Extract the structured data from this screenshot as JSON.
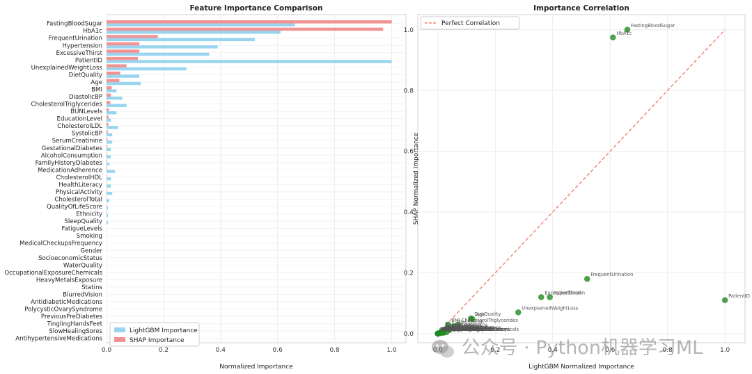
{
  "chart_data": [
    {
      "type": "bar",
      "orientation": "horizontal",
      "title": "Feature Importance Comparison",
      "xlabel": "Normalized Importance",
      "xlim": [
        0,
        1.05
      ],
      "xticks": [
        "0.0",
        "0.2",
        "0.4",
        "0.6",
        "0.8",
        "1.0"
      ],
      "grid": true,
      "legend_position": "lower-left",
      "categories": [
        "FastingBloodSugar",
        "HbA1c",
        "FrequentUrination",
        "Hypertension",
        "ExcessiveThirst",
        "PatientID",
        "UnexplainedWeightLoss",
        "DietQuality",
        "Age",
        "BMI",
        "DiastolicBP",
        "CholesterolTriglycerides",
        "BUNLevels",
        "EducationLevel",
        "CholesterolLDL",
        "SystolicBP",
        "SerumCreatinine",
        "GestationalDiabetes",
        "AlcoholConsumption",
        "FamilyHistoryDiabetes",
        "MedicationAdherence",
        "CholesterolHDL",
        "HealthLiteracy",
        "PhysicalActivity",
        "CholesterolTotal",
        "QualityOfLifeScore",
        "Ethnicity",
        "SleepQuality",
        "FatigueLevels",
        "Smoking",
        "MedicalCheckupsFrequency",
        "Gender",
        "SocioeconomicStatus",
        "WaterQuality",
        "OccupationalExposureChemicals",
        "HeavyMetalsExposure",
        "Statins",
        "BlurredVision",
        "AntidiabeticMedications",
        "PolycysticOvarySyndrome",
        "PreviousPreDiabetes",
        "TinglingHandsFeet",
        "SlowHealingSores",
        "AntihypertensiveMedications"
      ],
      "series": [
        {
          "name": "LightGBM Importance",
          "color": "#87ceeb",
          "values": [
            0.66,
            0.61,
            0.52,
            0.39,
            0.36,
            1.0,
            0.28,
            0.115,
            0.12,
            0.035,
            0.055,
            0.07,
            0.035,
            0.015,
            0.04,
            0.02,
            0.02,
            0.015,
            0.015,
            0.01,
            0.03,
            0.015,
            0.015,
            0.02,
            0.01,
            0.005,
            0.005,
            0.005,
            0.0,
            0.0,
            0.0,
            0.0,
            0.0,
            0.0,
            0.0,
            0.0,
            0.0,
            0.0,
            0.0,
            0.0,
            0.0,
            0.0,
            0.0,
            0.0
          ]
        },
        {
          "name": "SHAP Importance",
          "color": "#f08080",
          "values": [
            1.0,
            0.97,
            0.18,
            0.115,
            0.115,
            0.11,
            0.07,
            0.048,
            0.045,
            0.018,
            0.015,
            0.013,
            0.008,
            0.007,
            0.006,
            0.004,
            0.003,
            0.003,
            0.002,
            0.002,
            0.002,
            0.001,
            0.001,
            0.001,
            0.001,
            0.001,
            0.001,
            0.0,
            0.0,
            0.0,
            0.0,
            0.0,
            0.0,
            0.0,
            0.0,
            0.0,
            0.0,
            0.0,
            0.0,
            0.0,
            0.0,
            0.0,
            0.0,
            0.0
          ]
        }
      ]
    },
    {
      "type": "scatter",
      "title": "Importance Correlation",
      "xlabel": "LightGBM Normalized Importance",
      "ylabel": "SHAP Normalized Importance",
      "xlim": [
        -0.07,
        1.07
      ],
      "ylim": [
        -0.03,
        1.05
      ],
      "xticks": [
        "0.0",
        "0.2",
        "0.4",
        "0.6",
        "0.8",
        "1.0"
      ],
      "yticks": [
        "0.0",
        "0.2",
        "0.4",
        "0.6",
        "0.8",
        "1.0"
      ],
      "grid": true,
      "legend_position": "top-left",
      "point_color": "#228b22",
      "reference_line": {
        "name": "Perfect Correlation",
        "color": "#f08070",
        "from": [
          0,
          0
        ],
        "to": [
          1,
          1
        ]
      },
      "points": [
        {
          "label": "FastingBloodSugar",
          "x": 0.66,
          "y": 1.0
        },
        {
          "label": "HbA1c",
          "x": 0.61,
          "y": 0.975
        },
        {
          "label": "FrequentUrination",
          "x": 0.52,
          "y": 0.18
        },
        {
          "label": "Hypertension",
          "x": 0.39,
          "y": 0.12
        },
        {
          "label": "ExcessiveThirst",
          "x": 0.36,
          "y": 0.12
        },
        {
          "label": "PatientID",
          "x": 1.0,
          "y": 0.11
        },
        {
          "label": "UnexplainedWeightLoss",
          "x": 0.28,
          "y": 0.07
        },
        {
          "label": "DietQuality",
          "x": 0.115,
          "y": 0.05
        },
        {
          "label": "Age",
          "x": 0.12,
          "y": 0.048
        },
        {
          "label": "BMI",
          "x": 0.035,
          "y": 0.03
        },
        {
          "label": "DiastolicBP",
          "x": 0.055,
          "y": 0.024
        },
        {
          "label": "CholesterolTriglycerides",
          "x": 0.07,
          "y": 0.03
        },
        {
          "label": "BUNLevels",
          "x": 0.035,
          "y": 0.015
        },
        {
          "label": "EducationLevel",
          "x": 0.015,
          "y": 0.012
        },
        {
          "label": "CholesterolLDL",
          "x": 0.04,
          "y": 0.012
        },
        {
          "label": "SystolicBP",
          "x": 0.02,
          "y": 0.01
        },
        {
          "label": "SerumCreatinine",
          "x": 0.02,
          "y": 0.008
        },
        {
          "label": "GestationalDiabetes",
          "x": 0.015,
          "y": 0.006
        },
        {
          "label": "AlcoholConsumption",
          "x": 0.015,
          "y": 0.005
        },
        {
          "label": "FamilyHistoryDiabetes",
          "x": 0.01,
          "y": 0.004
        },
        {
          "label": "MedicationAdherence",
          "x": 0.03,
          "y": 0.005
        },
        {
          "label": "CholesterolHDL",
          "x": 0.015,
          "y": 0.004
        },
        {
          "label": "HealthLiteracy",
          "x": 0.015,
          "y": 0.003
        },
        {
          "label": "PhysicalActivity",
          "x": 0.02,
          "y": 0.003
        },
        {
          "label": "CholesterolTotal",
          "x": 0.01,
          "y": 0.003
        },
        {
          "label": "QualityOfLifeScore",
          "x": 0.005,
          "y": 0.002
        },
        {
          "label": "Ethnicity",
          "x": 0.005,
          "y": 0.002
        },
        {
          "label": "SleepQuality",
          "x": 0.005,
          "y": 0.001
        },
        {
          "label": "FatigueLevels",
          "x": 0.0,
          "y": 0.0
        },
        {
          "label": "Smoking",
          "x": 0.0,
          "y": 0.0
        },
        {
          "label": "MedicalCheckupsFrequency",
          "x": 0.0,
          "y": 0.0
        },
        {
          "label": "Gender",
          "x": 0.0,
          "y": 0.0
        },
        {
          "label": "SocioeconomicStatus",
          "x": 0.0,
          "y": 0.0
        },
        {
          "label": "WaterQuality",
          "x": 0.0,
          "y": 0.0
        },
        {
          "label": "OccupationalExposureChemicals",
          "x": 0.0,
          "y": 0.0
        },
        {
          "label": "HeavyMetalsExposure",
          "x": 0.0,
          "y": 0.0
        },
        {
          "label": "Statins",
          "x": 0.0,
          "y": 0.0
        },
        {
          "label": "BlurredVision",
          "x": 0.0,
          "y": 0.0
        },
        {
          "label": "AntidiabeticMedications",
          "x": 0.0,
          "y": 0.0
        },
        {
          "label": "PolycysticOvarySyndrome",
          "x": 0.0,
          "y": 0.0
        },
        {
          "label": "PreviousPreDiabetes",
          "x": 0.0,
          "y": 0.0
        },
        {
          "label": "TinglingHandsFeet",
          "x": 0.0,
          "y": 0.0
        },
        {
          "label": "SlowHealingSores",
          "x": 0.0,
          "y": 0.0
        },
        {
          "label": "AntihypertensiveMedications",
          "x": 0.0,
          "y": 0.0
        }
      ]
    }
  ],
  "watermark": {
    "icon": "wechat-icon",
    "text": "公众号 · Python机器学习ML"
  }
}
